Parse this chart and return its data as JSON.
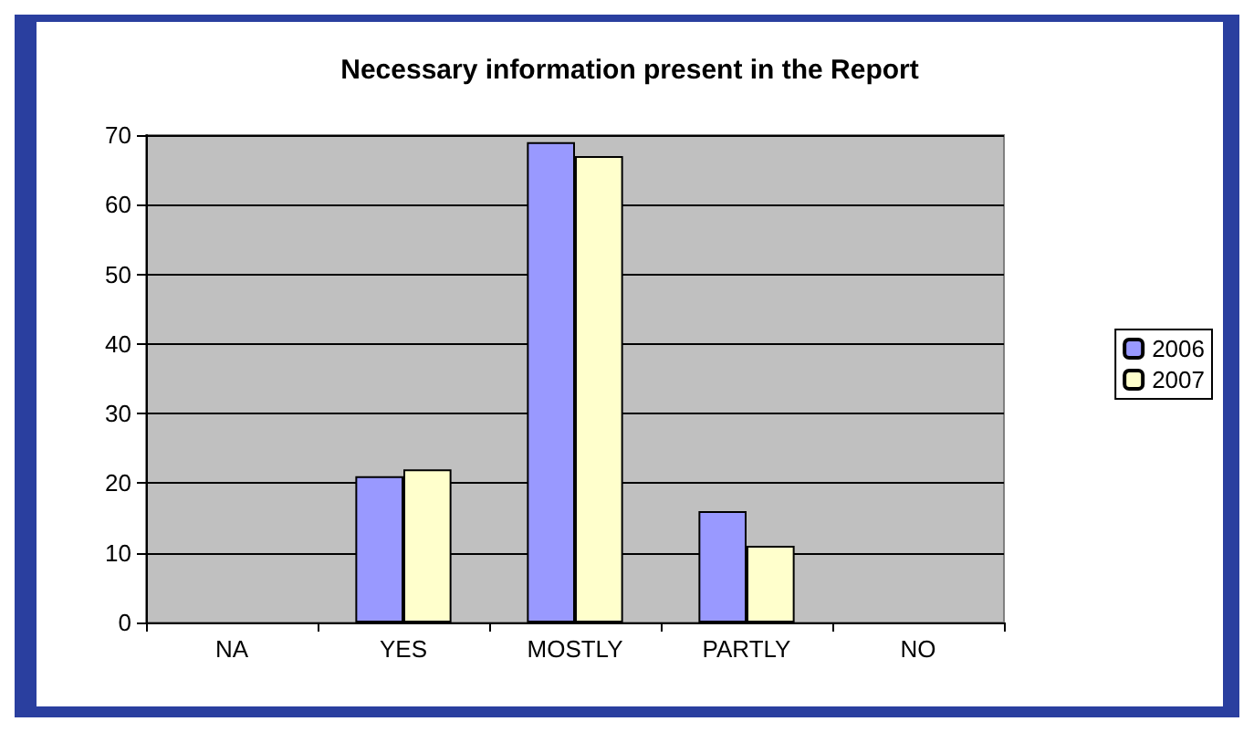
{
  "chart_data": {
    "type": "bar",
    "title": "Necessary information present in the Report",
    "categories": [
      "NA",
      "YES",
      "MOSTLY",
      "PARTLY",
      "NO"
    ],
    "series": [
      {
        "name": "2006",
        "color": "#9999ff",
        "values": [
          0,
          21,
          69,
          16,
          0
        ]
      },
      {
        "name": "2007",
        "color": "#ffffcc",
        "values": [
          0,
          22,
          67,
          11,
          0
        ]
      }
    ],
    "ylim": [
      0,
      70
    ],
    "yticks": [
      0,
      10,
      20,
      30,
      40,
      50,
      60,
      70
    ],
    "grid": "y",
    "legend": "right"
  }
}
